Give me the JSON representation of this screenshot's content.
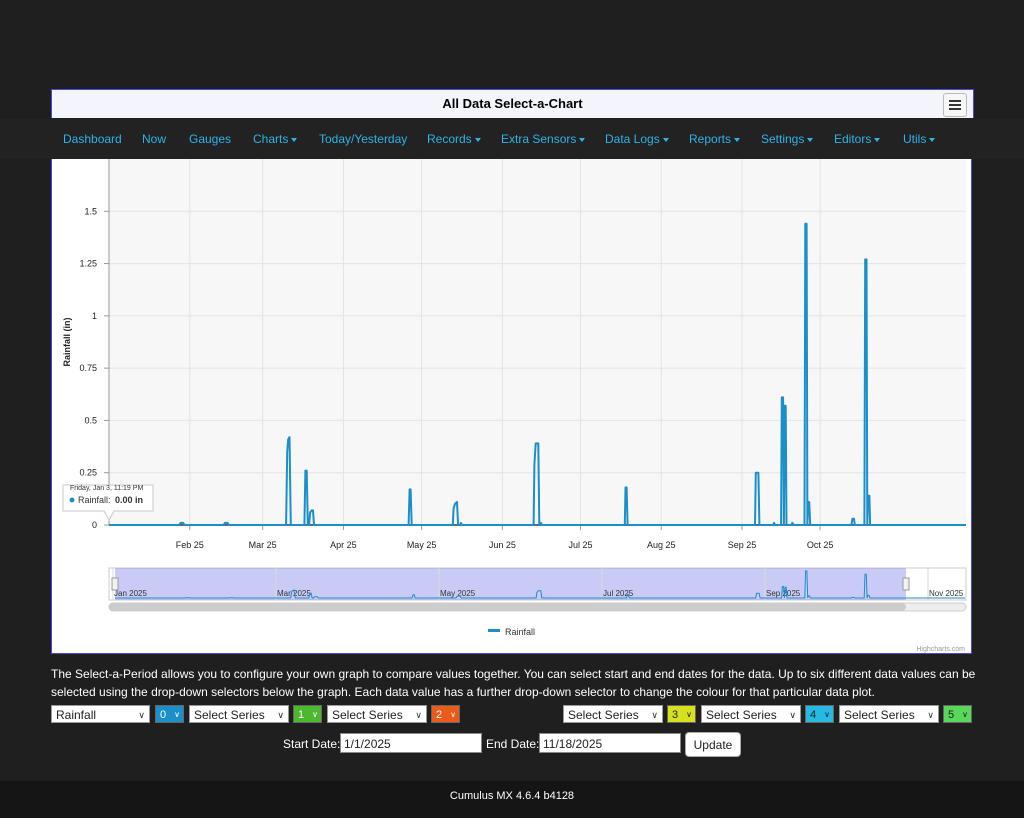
{
  "page": {
    "title": "All Data Select-a-Chart"
  },
  "nav": [
    {
      "label": "Dashboard",
      "dropdown": false
    },
    {
      "label": "Now",
      "dropdown": false
    },
    {
      "label": "Gauges",
      "dropdown": false
    },
    {
      "label": "Charts",
      "dropdown": true
    },
    {
      "label": "Today/Yesterday",
      "dropdown": false
    },
    {
      "label": "Records",
      "dropdown": true
    },
    {
      "label": "Extra Sensors",
      "dropdown": true
    },
    {
      "label": "Data Logs",
      "dropdown": true
    },
    {
      "label": "Reports",
      "dropdown": true
    },
    {
      "label": "Settings",
      "dropdown": true
    },
    {
      "label": "Editors",
      "dropdown": true
    },
    {
      "label": "Utils",
      "dropdown": true
    }
  ],
  "chart_data": {
    "type": "line",
    "ylabel": "Rainfall (in)",
    "ylim": [
      0,
      1.75
    ],
    "yticks": [
      0,
      0.25,
      0.5,
      0.75,
      1,
      1.25,
      1.5
    ],
    "ytick_labels": [
      "0",
      "0.25",
      "0.5",
      "0.75",
      "1",
      "1.25",
      "1.5"
    ],
    "xlim": [
      1,
      330
    ],
    "xticks": [
      {
        "day": 32,
        "label": "Feb 25"
      },
      {
        "day": 60,
        "label": "Mar 25"
      },
      {
        "day": 91,
        "label": "Apr 25"
      },
      {
        "day": 121,
        "label": "May 25"
      },
      {
        "day": 152,
        "label": "Jun 25"
      },
      {
        "day": 182,
        "label": "Jul 25"
      },
      {
        "day": 213,
        "label": "Aug 25"
      },
      {
        "day": 244,
        "label": "Sep 25"
      },
      {
        "day": 274,
        "label": "Oct 25"
      }
    ],
    "series": [
      {
        "name": "Rainfall",
        "color": "#1a8fc9",
        "points": [
          [
            1,
            0
          ],
          [
            28,
            0
          ],
          [
            28.5,
            0.01
          ],
          [
            29.5,
            0.01
          ],
          [
            30,
            0
          ],
          [
            45,
            0
          ],
          [
            45.5,
            0.01
          ],
          [
            46.5,
            0.01
          ],
          [
            47,
            0
          ],
          [
            69,
            0
          ],
          [
            69.4,
            0.35
          ],
          [
            69.8,
            0.41
          ],
          [
            70.3,
            0.42
          ],
          [
            70.8,
            0
          ],
          [
            76,
            0
          ],
          [
            76.4,
            0.26
          ],
          [
            76.9,
            0.26
          ],
          [
            77.3,
            0
          ],
          [
            77.8,
            0
          ],
          [
            78.2,
            0.06
          ],
          [
            78.8,
            0.07
          ],
          [
            79.3,
            0.07
          ],
          [
            79.7,
            0
          ],
          [
            116,
            0
          ],
          [
            116.4,
            0.17
          ],
          [
            116.8,
            0.17
          ],
          [
            117.2,
            0
          ],
          [
            133,
            0
          ],
          [
            133.3,
            0.08
          ],
          [
            133.8,
            0.1
          ],
          [
            134.6,
            0.11
          ],
          [
            135,
            0
          ],
          [
            135.8,
            0
          ],
          [
            136.1,
            0.01
          ],
          [
            136.6,
            0
          ],
          [
            164,
            0
          ],
          [
            164.3,
            0.29
          ],
          [
            164.8,
            0.39
          ],
          [
            165.8,
            0.39
          ],
          [
            166.2,
            0
          ],
          [
            166.8,
            0.01
          ],
          [
            167.3,
            0
          ],
          [
            199,
            0
          ],
          [
            199.3,
            0.18
          ],
          [
            199.7,
            0.18
          ],
          [
            200.1,
            0
          ],
          [
            249,
            0
          ],
          [
            249.3,
            0.25
          ],
          [
            250.3,
            0.25
          ],
          [
            250.7,
            0
          ],
          [
            256,
            0
          ],
          [
            256.3,
            0.01
          ],
          [
            256.7,
            0
          ],
          [
            259,
            0
          ],
          [
            259.3,
            0.61
          ],
          [
            259.8,
            0.61
          ],
          [
            260.1,
            0
          ],
          [
            260.4,
            0.57
          ],
          [
            260.8,
            0.57
          ],
          [
            261.1,
            0
          ],
          [
            263,
            0
          ],
          [
            263.3,
            0.01
          ],
          [
            264,
            0
          ],
          [
            268,
            0
          ],
          [
            268.3,
            1.44
          ],
          [
            268.8,
            1.44
          ],
          [
            269.1,
            0
          ],
          [
            269.4,
            0.11
          ],
          [
            269.8,
            0.11
          ],
          [
            270.2,
            0
          ],
          [
            286,
            0
          ],
          [
            286.4,
            0.03
          ],
          [
            287,
            0.03
          ],
          [
            287.3,
            0
          ],
          [
            291,
            0
          ],
          [
            291.3,
            1.27
          ],
          [
            291.8,
            1.27
          ],
          [
            292.1,
            0
          ],
          [
            292.4,
            0.14
          ],
          [
            292.9,
            0.14
          ],
          [
            293.2,
            0
          ],
          [
            330,
            0
          ]
        ]
      }
    ],
    "navigator": {
      "labels": [
        "Jan 2025",
        "Mar 2025",
        "May 2025",
        "Jul 2025",
        "Sep 2025",
        "Nov 2025"
      ]
    },
    "tooltip": {
      "date": "Friday, Jan 3, 11:19 PM",
      "series": "Rainfall",
      "value": "0.00 in"
    },
    "legend": "Rainfall",
    "credits": "Highcharts.com"
  },
  "intro_text": "The Select-a-Period allows you to configure your own graph to compare values together. You can select start and end dates for the data. Up to six different data values can be selected using the drop-down selectors below the graph. Each data value has a further drop-down selector to change the colour for that particular data plot.",
  "series_selectors": [
    {
      "value": "Rainfall",
      "color_index": "0",
      "color": "#1a8fc9"
    },
    {
      "value": "Select Series",
      "color_index": "1",
      "color": "#4cb82e"
    },
    {
      "value": "Select Series",
      "color_index": "2",
      "color": "#ea5a1a"
    },
    {
      "value": "Select Series",
      "color_index": "3",
      "color": "#d6e01c"
    },
    {
      "value": "Select Series",
      "color_index": "4",
      "color": "#26b9e3"
    },
    {
      "value": "Select Series",
      "color_index": "5",
      "color": "#5ad65a"
    }
  ],
  "dates": {
    "start_label": "Start Date:",
    "start_value": "1/1/2025",
    "end_label": "End Date:",
    "end_value": "11/18/2025",
    "update_label": "Update"
  },
  "footer": "Cumulus MX 4.6.4 b4128"
}
